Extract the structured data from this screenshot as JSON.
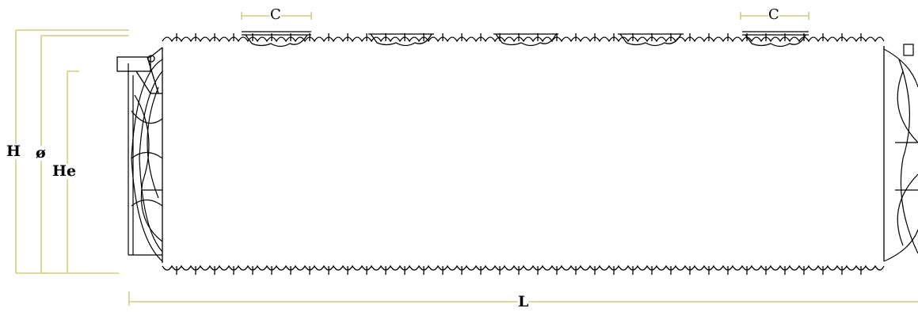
{
  "colors": {
    "outline": "#000000",
    "dimension": "#c9c36a",
    "background": "#ffffff"
  },
  "labels": {
    "height": "H",
    "diameter": "ø",
    "effective_height": "He",
    "length": "L",
    "manhole_left": "C",
    "manhole_right": "C"
  }
}
